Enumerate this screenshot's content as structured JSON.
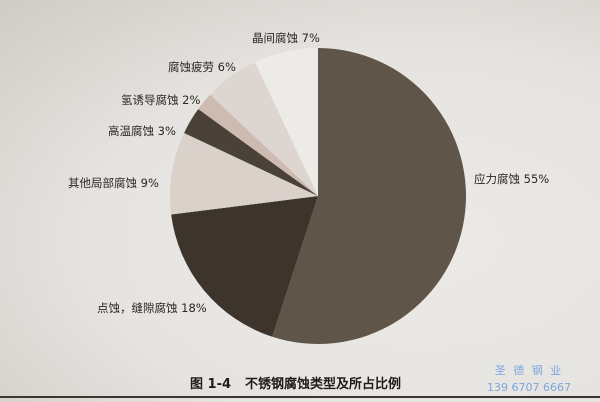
{
  "chart_data": {
    "type": "pie",
    "title": "",
    "start": "12 o'clock",
    "direction": "clockwise",
    "slices": [
      {
        "label": "应力腐蚀 55%",
        "name": "应力腐蚀",
        "value": 55,
        "color": "#5f5649"
      },
      {
        "label": "点蚀，缝隙腐蚀 18%",
        "name": "点蚀，缝隙腐蚀",
        "value": 18,
        "color": "#3d352b"
      },
      {
        "label": "其他局部腐蚀 9%",
        "name": "其他局部腐蚀",
        "value": 9,
        "color": "#d9d1ca"
      },
      {
        "label": "高温腐蚀 3%",
        "name": "高温腐蚀",
        "value": 3,
        "color": "#4a4238"
      },
      {
        "label": "氢诱导腐蚀 2%",
        "name": "氢诱导腐蚀",
        "value": 2,
        "color": "#cdbab1"
      },
      {
        "label": "腐蚀疲劳 6%",
        "name": "腐蚀疲劳",
        "value": 6,
        "color": "#ddd6d0"
      },
      {
        "label": "晶间腐蚀 7%",
        "name": "晶间腐蚀",
        "value": 7,
        "color": "#ecebe7"
      }
    ]
  },
  "caption": {
    "number": "图 1-4",
    "text": "不锈钢腐蚀类型及所占比例"
  },
  "watermark": {
    "name": "圣 德 钢 业",
    "phone": "139 6707 6667"
  }
}
